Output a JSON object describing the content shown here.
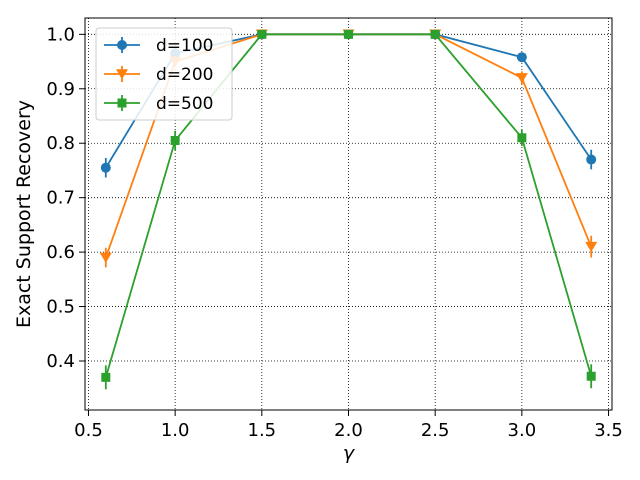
{
  "chart_data": {
    "type": "line",
    "xlabel": "γ",
    "ylabel": "Exact Support Recovery",
    "xlim": [
      0.48,
      3.52
    ],
    "ylim": [
      0.31,
      1.03
    ],
    "xticks": [
      "0.5",
      "1.0",
      "1.5",
      "2.0",
      "2.5",
      "3.0",
      "3.5"
    ],
    "yticks": [
      "0.4",
      "0.5",
      "0.6",
      "0.7",
      "0.8",
      "0.9",
      "1.0"
    ],
    "grid": true,
    "legend_position": "top-left",
    "x": [
      0.6,
      1.0,
      1.5,
      2.0,
      2.5,
      3.0,
      3.4
    ],
    "series": [
      {
        "name": "d=100",
        "color": "#1f77b4",
        "marker": "circle",
        "values": [
          0.755,
          0.965,
          1.0,
          1.0,
          1.0,
          0.958,
          0.77
        ],
        "errors": [
          0.018,
          0.01,
          0.0,
          0.0,
          0.0,
          0.005,
          0.018
        ]
      },
      {
        "name": "d=200",
        "color": "#ff7f0e",
        "marker": "triangle-down",
        "values": [
          0.59,
          0.95,
          1.0,
          1.0,
          1.0,
          0.92,
          0.61
        ],
        "errors": [
          0.018,
          0.01,
          0.0,
          0.0,
          0.0,
          0.012,
          0.02
        ]
      },
      {
        "name": "d=500",
        "color": "#2ca02c",
        "marker": "square",
        "values": [
          0.37,
          0.805,
          1.0,
          1.0,
          1.0,
          0.81,
          0.372
        ],
        "errors": [
          0.022,
          0.018,
          0.0,
          0.0,
          0.0,
          0.015,
          0.022
        ]
      }
    ]
  }
}
